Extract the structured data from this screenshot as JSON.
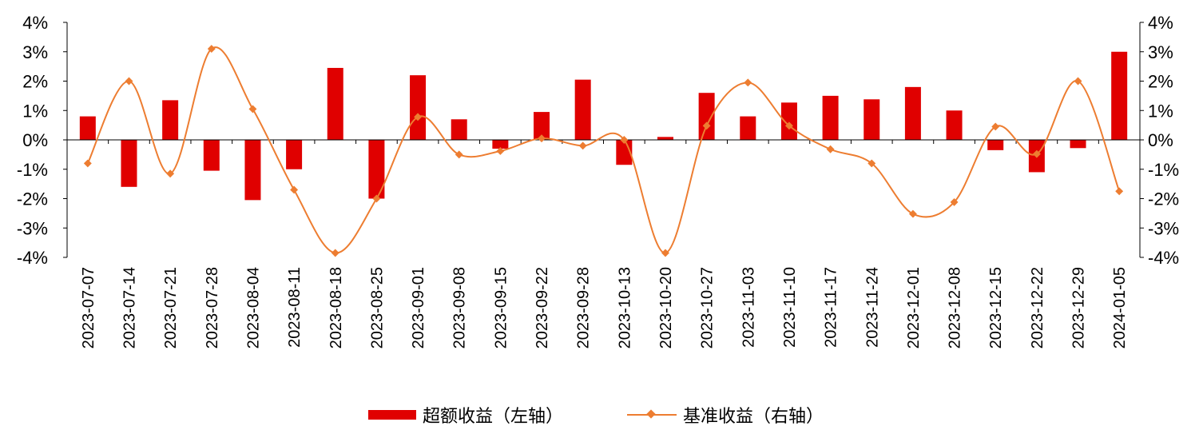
{
  "chart_data": {
    "type": "bar+line",
    "categories": [
      "2023-07-07",
      "2023-07-14",
      "2023-07-21",
      "2023-07-28",
      "2023-08-04",
      "2023-08-11",
      "2023-08-18",
      "2023-08-25",
      "2023-09-01",
      "2023-09-08",
      "2023-09-15",
      "2023-09-22",
      "2023-09-28",
      "2023-10-13",
      "2023-10-20",
      "2023-10-27",
      "2023-11-03",
      "2023-11-10",
      "2023-11-17",
      "2023-11-24",
      "2023-12-01",
      "2023-12-08",
      "2023-12-15",
      "2023-12-22",
      "2023-12-29",
      "2024-01-05"
    ],
    "series": [
      {
        "name": "超额收益（左轴）",
        "type": "bar",
        "axis": "left",
        "color": "#e00000",
        "values": [
          0.8,
          -1.6,
          1.35,
          -1.05,
          -2.05,
          -1.0,
          2.45,
          -2.0,
          2.2,
          0.7,
          -0.3,
          0.95,
          2.05,
          -0.85,
          0.1,
          1.6,
          0.8,
          1.27,
          1.5,
          1.38,
          1.8,
          1.0,
          -0.35,
          -1.1,
          -0.28,
          3.0
        ]
      },
      {
        "name": "基准收益（右轴）",
        "type": "line",
        "axis": "right",
        "color": "#ed7d31",
        "values": [
          -0.8,
          2.0,
          -1.15,
          3.1,
          1.05,
          -1.7,
          -3.85,
          -2.0,
          0.78,
          -0.5,
          -0.38,
          0.05,
          -0.2,
          0.0,
          -3.85,
          0.48,
          1.95,
          0.48,
          -0.32,
          -0.8,
          -2.52,
          -2.12,
          0.45,
          -0.48,
          2.0,
          -1.75
        ]
      }
    ],
    "y_left": {
      "ylim": [
        -4,
        4
      ],
      "ticks": [
        4,
        3,
        2,
        1,
        0,
        -1,
        -2,
        -3,
        -4
      ],
      "tick_labels": [
        "4%",
        "3%",
        "2%",
        "1%",
        "0%",
        "-1%",
        "-2%",
        "-3%",
        "-4%"
      ]
    },
    "y_right": {
      "ylim": [
        -4,
        4
      ],
      "ticks": [
        4,
        3,
        2,
        1,
        0,
        -1,
        -2,
        -3,
        -4
      ],
      "tick_labels": [
        "4%",
        "3%",
        "2%",
        "1%",
        "0%",
        "-1%",
        "-2%",
        "-3%",
        "-4%"
      ]
    },
    "xlabel": "",
    "ylabel": "",
    "title": "",
    "grid": false,
    "legend_position": "bottom"
  }
}
